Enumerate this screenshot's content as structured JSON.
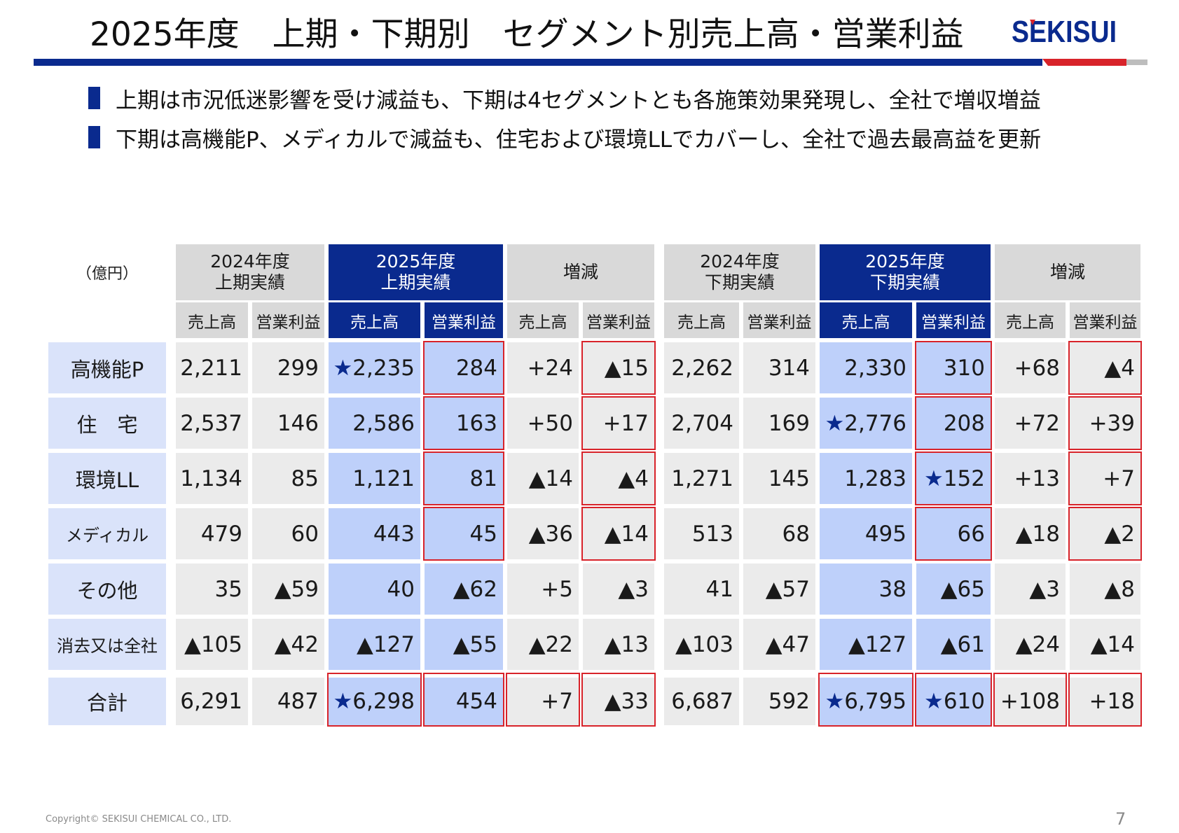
{
  "title": "2025年度　上期・下期別　セグメント別売上高・営業利益",
  "logo_text": "SEKISUI",
  "colors": {
    "brand_navy": "#0a2a8e",
    "accent_red": "#d8232a",
    "light_blue": "#bed0fa",
    "row_label_blue": "#dae3fa",
    "cell_grey": "#ebebeb",
    "header_grey": "#d9d9d9"
  },
  "bullets": [
    "上期は市況低迷影響を受け減益も、下期は4セグメントとも各施策効果発現し、全社で増収増益",
    "下期は高機能P、メディカルで減益も、住宅および環境LLでカバーし、全社で過去最高益を更新"
  ],
  "table": {
    "unit": "（億円）",
    "groups": [
      {
        "line1": "2024年度",
        "line2": "上期実績",
        "highlight": false
      },
      {
        "line1": "2025年度",
        "line2": "上期実績",
        "highlight": true
      },
      {
        "line1": "増減",
        "line2": "",
        "highlight": false
      },
      {
        "line1": "2024年度",
        "line2": "下期実績",
        "highlight": false
      },
      {
        "line1": "2025年度",
        "line2": "下期実績",
        "highlight": true
      },
      {
        "line1": "増減",
        "line2": "",
        "highlight": false
      }
    ],
    "subheaders": [
      "売上高",
      "営業利益",
      "売上高",
      "営業利益",
      "売上高",
      "営業利益",
      "売上高",
      "営業利益",
      "売上高",
      "営業利益",
      "売上高",
      "営業利益"
    ],
    "rows": [
      {
        "label": "高機能P",
        "cells": [
          "2,211",
          "299",
          "★2,235",
          "284",
          "+24",
          "▲15",
          "2,262",
          "314",
          "2,330",
          "310",
          "+68",
          "▲4"
        ]
      },
      {
        "label": "住　宅",
        "cells": [
          "2,537",
          "146",
          "2,586",
          "163",
          "+50",
          "+17",
          "2,704",
          "169",
          "★2,776",
          "208",
          "+72",
          "+39"
        ]
      },
      {
        "label": "環境LL",
        "cells": [
          "1,134",
          "85",
          "1,121",
          "81",
          "▲14",
          "▲4",
          "1,271",
          "145",
          "1,283",
          "★152",
          "+13",
          "+7"
        ]
      },
      {
        "label": "メディカル",
        "cells": [
          "479",
          "60",
          "443",
          "45",
          "▲36",
          "▲14",
          "513",
          "68",
          "495",
          "66",
          "▲18",
          "▲2"
        ]
      },
      {
        "label": "その他",
        "cells": [
          "35",
          "▲59",
          "40",
          "▲62",
          "+5",
          "▲3",
          "41",
          "▲57",
          "38",
          "▲65",
          "▲3",
          "▲8"
        ]
      },
      {
        "label": "消去又は全社",
        "cells": [
          "▲105",
          "▲42",
          "▲127",
          "▲55",
          "▲22",
          "▲13",
          "▲103",
          "▲47",
          "▲127",
          "▲61",
          "▲24",
          "▲14"
        ]
      },
      {
        "label": "合計",
        "cells": [
          "6,291",
          "487",
          "★6,298",
          "454",
          "+7",
          "▲33",
          "6,687",
          "592",
          "★6,795",
          "★610",
          "+108",
          "+18"
        ]
      }
    ]
  },
  "footer": {
    "copyright": "Copyright© SEKISUI CHEMICAL CO., LTD.",
    "page_number": "7"
  }
}
